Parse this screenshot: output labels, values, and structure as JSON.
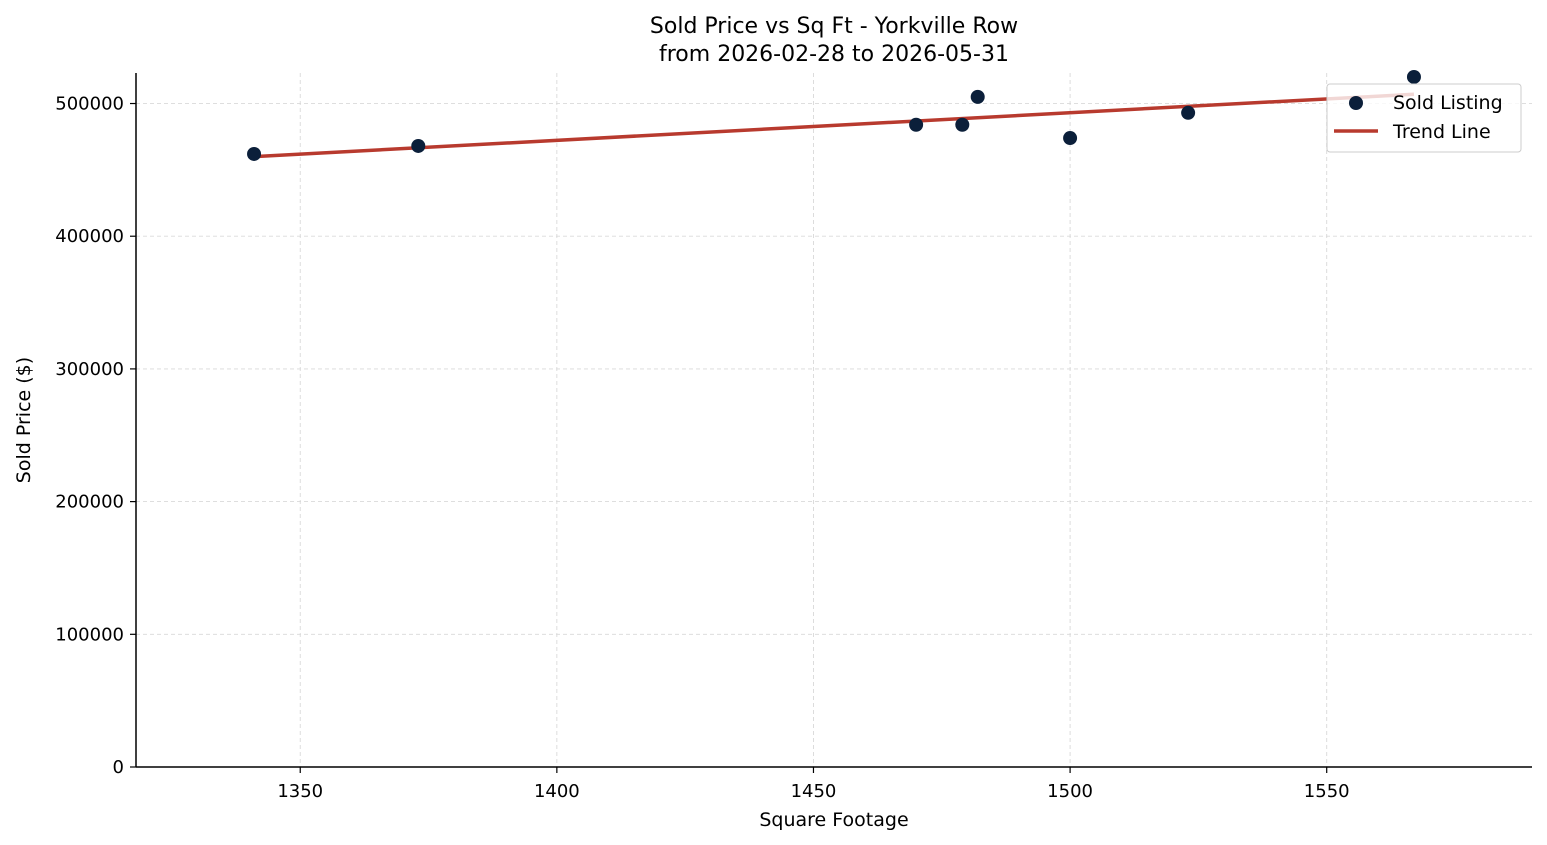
{
  "chart_data": {
    "type": "scatter",
    "title": "Sold Price vs Sq Ft - Yorkville Row",
    "subtitle": "from 2026-02-28 to 2026-05-31",
    "xlabel": "Square Footage",
    "ylabel": "Sold Price ($)",
    "xlim": [
      1318,
      1590
    ],
    "ylim": [
      0,
      523000
    ],
    "xticks": [
      1350,
      1400,
      1450,
      1500,
      1550
    ],
    "yticks": [
      0,
      100000,
      200000,
      300000,
      400000,
      500000
    ],
    "grid": true,
    "legend_position": "top-right",
    "series": [
      {
        "name": "Sold Listing",
        "kind": "scatter",
        "color": "#0b1f3a",
        "points": [
          {
            "x": 1341,
            "y": 462000
          },
          {
            "x": 1373,
            "y": 468000
          },
          {
            "x": 1470,
            "y": 484000
          },
          {
            "x": 1479,
            "y": 484000
          },
          {
            "x": 1482,
            "y": 505000
          },
          {
            "x": 1500,
            "y": 474000
          },
          {
            "x": 1523,
            "y": 493000
          },
          {
            "x": 1567,
            "y": 520000
          }
        ]
      },
      {
        "name": "Trend Line",
        "kind": "line",
        "color": "#b83a2e",
        "points": [
          {
            "x": 1341,
            "y": 460000
          },
          {
            "x": 1567,
            "y": 507000
          }
        ]
      }
    ]
  }
}
